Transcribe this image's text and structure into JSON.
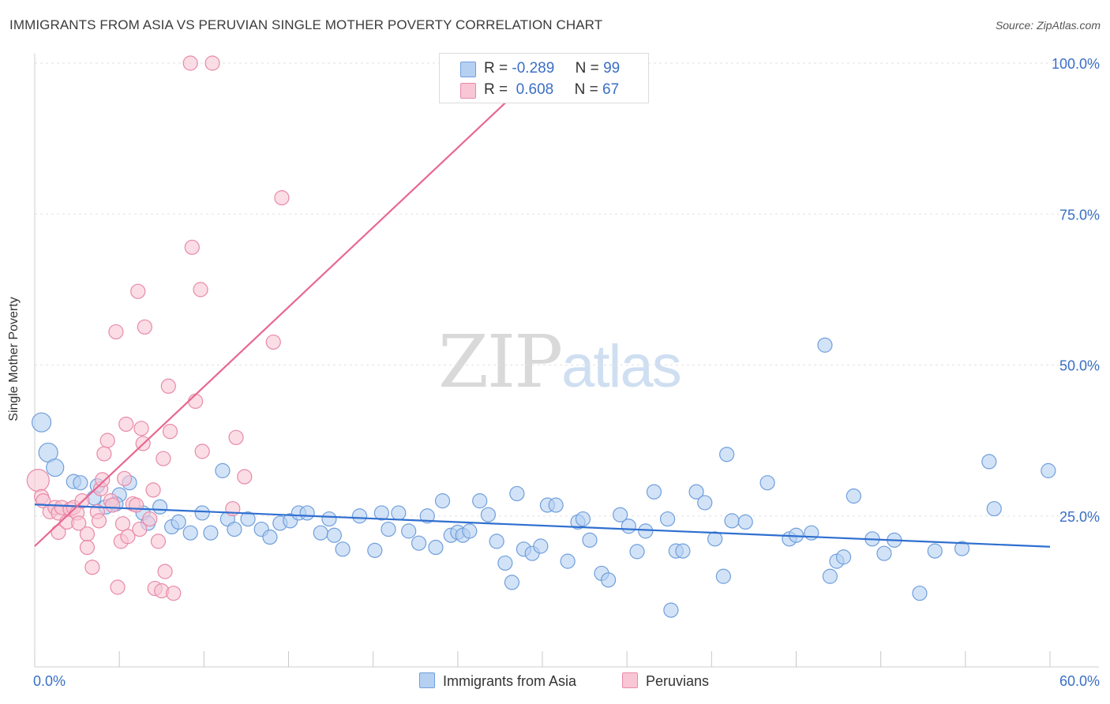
{
  "title": "IMMIGRANTS FROM ASIA VS PERUVIAN SINGLE MOTHER POVERTY CORRELATION CHART",
  "source": "Source: ZipAtlas.com",
  "watermark": {
    "zip": "ZIP",
    "atlas": "atlas"
  },
  "legend_stats": [
    {
      "r_label": "R =",
      "r_value": "-0.289",
      "n_label": "N =",
      "n_value": "99"
    },
    {
      "r_label": "R =",
      "r_value": " 0.608",
      "n_label": "N =",
      "n_value": "67"
    }
  ],
  "chart_data": {
    "type": "scatter",
    "title": "IMMIGRANTS FROM ASIA VS PERUVIAN SINGLE MOTHER POVERTY CORRELATION CHART",
    "xlabel": "",
    "ylabel": "Single Mother Poverty",
    "xlim": [
      0,
      60
    ],
    "ylim": [
      0,
      100
    ],
    "x_tick_labels": [
      "0.0%",
      "60.0%"
    ],
    "y_tick_labels": [
      "25.0%",
      "50.0%",
      "75.0%",
      "100.0%"
    ],
    "y_ticks": [
      25,
      50,
      75,
      100
    ],
    "grid": true,
    "legend_position": "bottom",
    "colors": {
      "asia_fill": "#b6d0f2",
      "asia_stroke": "#6f9fdc",
      "asia_line": "#2f6fd0",
      "peru_fill": "#f8c6d5",
      "peru_stroke": "#e88aa8",
      "peru_line": "#e8678f",
      "tick_label": "#3a6fc4"
    },
    "series": [
      {
        "name": "Immigrants from Asia",
        "trend": {
          "x": [
            0,
            60
          ],
          "y": [
            26.9,
            19.9
          ]
        },
        "points": [
          [
            0.4,
            40.5
          ],
          [
            0.8,
            35.5
          ],
          [
            1.2,
            33
          ],
          [
            2.3,
            30.7
          ],
          [
            2.7,
            30.5
          ],
          [
            3.7,
            30
          ],
          [
            3.5,
            28
          ],
          [
            4.2,
            26.5
          ],
          [
            5,
            28.5
          ],
          [
            5.6,
            30.5
          ],
          [
            4.8,
            27
          ],
          [
            6.4,
            25.5
          ],
          [
            6.7,
            23.8
          ],
          [
            7.4,
            26.5
          ],
          [
            8.1,
            23.2
          ],
          [
            8.5,
            24
          ],
          [
            9.2,
            22.2
          ],
          [
            9.9,
            25.5
          ],
          [
            10.4,
            22.2
          ],
          [
            11.1,
            32.5
          ],
          [
            11.4,
            24.5
          ],
          [
            11.8,
            22.8
          ],
          [
            12.6,
            24.5
          ],
          [
            13.4,
            22.8
          ],
          [
            13.9,
            21.5
          ],
          [
            14.5,
            23.8
          ],
          [
            15.1,
            24.2
          ],
          [
            15.6,
            25.5
          ],
          [
            16.1,
            25.5
          ],
          [
            16.9,
            22.2
          ],
          [
            17.4,
            24.5
          ],
          [
            17.7,
            21.8
          ],
          [
            18.2,
            19.5
          ],
          [
            19.2,
            25
          ],
          [
            20.1,
            19.3
          ],
          [
            20.5,
            25.5
          ],
          [
            20.9,
            22.8
          ],
          [
            21.5,
            25.5
          ],
          [
            22.1,
            22.5
          ],
          [
            22.7,
            20.5
          ],
          [
            23.2,
            25
          ],
          [
            23.7,
            19.8
          ],
          [
            24.1,
            27.5
          ],
          [
            24.6,
            21.8
          ],
          [
            25,
            22.3
          ],
          [
            25.3,
            21.8
          ],
          [
            25.7,
            22.5
          ],
          [
            26.3,
            27.5
          ],
          [
            26.8,
            25.2
          ],
          [
            27.3,
            20.8
          ],
          [
            27.8,
            17.2
          ],
          [
            28.2,
            14
          ],
          [
            28.9,
            19.5
          ],
          [
            28.5,
            28.7
          ],
          [
            29.4,
            18.8
          ],
          [
            29.9,
            20
          ],
          [
            30.3,
            26.8
          ],
          [
            30.8,
            26.8
          ],
          [
            31.5,
            17.5
          ],
          [
            32.1,
            24
          ],
          [
            32.4,
            24.5
          ],
          [
            32.8,
            21
          ],
          [
            33.5,
            15.5
          ],
          [
            33.9,
            14.4
          ],
          [
            34.6,
            25.2
          ],
          [
            35.1,
            23.3
          ],
          [
            35.6,
            19.1
          ],
          [
            36.1,
            22.5
          ],
          [
            36.6,
            29
          ],
          [
            37.4,
            24.5
          ],
          [
            37.9,
            19.2
          ],
          [
            38.3,
            19.2
          ],
          [
            37.6,
            9.4
          ],
          [
            39.1,
            29
          ],
          [
            39.6,
            27.2
          ],
          [
            40.2,
            21.2
          ],
          [
            40.7,
            15
          ],
          [
            41.2,
            24.2
          ],
          [
            42,
            24
          ],
          [
            40.9,
            35.2
          ],
          [
            43.3,
            30.5
          ],
          [
            44.6,
            21.2
          ],
          [
            45,
            21.8
          ],
          [
            45.9,
            22.2
          ],
          [
            47,
            15
          ],
          [
            47.4,
            17.5
          ],
          [
            47.8,
            18.2
          ],
          [
            48.4,
            28.3
          ],
          [
            46.7,
            53.3
          ],
          [
            49.5,
            21.2
          ],
          [
            50.2,
            18.8
          ],
          [
            50.8,
            21
          ],
          [
            53.2,
            19.2
          ],
          [
            54.8,
            19.6
          ],
          [
            52.3,
            12.2
          ],
          [
            56.7,
            26.2
          ],
          [
            59.9,
            32.5
          ],
          [
            56.4,
            34
          ]
        ]
      },
      {
        "name": "Peruvians",
        "trend": {
          "x": [
            0,
            30.3
          ],
          "y": [
            20,
            100
          ]
        },
        "points": [
          [
            0.2,
            30.9
          ],
          [
            0.4,
            28.2
          ],
          [
            0.5,
            27.5
          ],
          [
            0.9,
            25.7
          ],
          [
            1.2,
            26.4
          ],
          [
            1.4,
            25.5
          ],
          [
            1.6,
            26.4
          ],
          [
            1.4,
            22.3
          ],
          [
            1.9,
            24
          ],
          [
            2.1,
            26.1
          ],
          [
            2.3,
            26.4
          ],
          [
            2.5,
            25.5
          ],
          [
            2.6,
            23.8
          ],
          [
            2.8,
            27.5
          ],
          [
            3.1,
            22
          ],
          [
            3.1,
            19.8
          ],
          [
            3.4,
            16.5
          ],
          [
            3.7,
            25.7
          ],
          [
            3.8,
            24.2
          ],
          [
            3.9,
            29.5
          ],
          [
            4,
            31
          ],
          [
            4.1,
            35.3
          ],
          [
            4.3,
            37.5
          ],
          [
            4.5,
            27.5
          ],
          [
            4.6,
            26.8
          ],
          [
            4.8,
            55.5
          ],
          [
            4.9,
            13.2
          ],
          [
            5.1,
            20.8
          ],
          [
            5.2,
            23.7
          ],
          [
            5.3,
            31.2
          ],
          [
            5.4,
            40.2
          ],
          [
            5.5,
            21.6
          ],
          [
            5.8,
            27
          ],
          [
            6,
            26.8
          ],
          [
            6.2,
            22.8
          ],
          [
            6.1,
            62.2
          ],
          [
            6.3,
            39.5
          ],
          [
            6.4,
            37
          ],
          [
            6.5,
            56.3
          ],
          [
            6.8,
            24.5
          ],
          [
            7,
            29.3
          ],
          [
            7.1,
            13
          ],
          [
            7.3,
            20.8
          ],
          [
            7.5,
            12.6
          ],
          [
            7.6,
            34.5
          ],
          [
            7.7,
            15.8
          ],
          [
            7.9,
            46.5
          ],
          [
            8,
            39
          ],
          [
            8.2,
            12.2
          ],
          [
            9.2,
            100
          ],
          [
            10.5,
            100
          ],
          [
            9.3,
            69.5
          ],
          [
            9.5,
            44
          ],
          [
            9.9,
            35.7
          ],
          [
            9.8,
            62.5
          ],
          [
            11.7,
            26.2
          ],
          [
            11.9,
            38
          ],
          [
            12.4,
            31.5
          ],
          [
            14.1,
            53.8
          ],
          [
            14.6,
            77.7
          ],
          [
            28.6,
            100
          ]
        ]
      }
    ]
  }
}
